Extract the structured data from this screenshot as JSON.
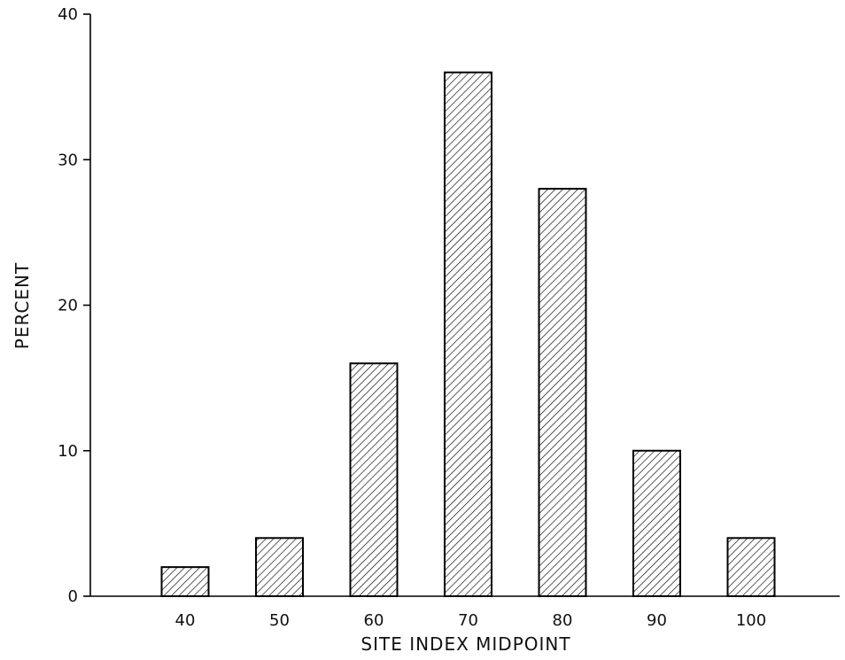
{
  "chart_data": {
    "type": "bar",
    "title": "",
    "xlabel": "SITE INDEX MIDPOINT",
    "ylabel": "PERCENT",
    "categories": [
      "40",
      "50",
      "60",
      "70",
      "80",
      "90",
      "100"
    ],
    "values": [
      2,
      4,
      16,
      36,
      28,
      10,
      4
    ],
    "ylim": [
      0,
      40
    ],
    "yticks": [
      "0",
      "10",
      "20",
      "30",
      "40"
    ],
    "grid": false,
    "bar_fill": "diagonal-hatch",
    "colors": {
      "bar_stroke": "#000000",
      "hatch": "#000000",
      "background": "#ffffff"
    }
  }
}
